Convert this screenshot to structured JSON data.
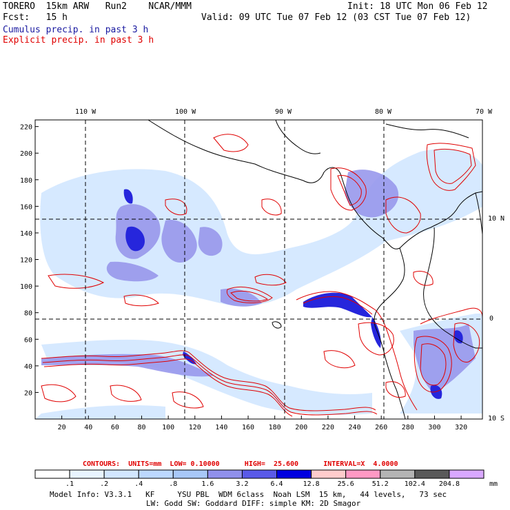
{
  "header": {
    "model": "TORERO  15km ARW   Run2    NCAR/MMM",
    "init": "Init: 18 UTC Mon 06 Feb 12",
    "fcst": "Fcst:   15 h",
    "valid": "Valid: 09 UTC Tue 07 Feb 12 (03 CST Tue 07 Feb 12)",
    "field1": "Cumulus precip. in past 3 h",
    "field2": "Explicit precip. in past 3 h"
  },
  "map": {
    "lon_labels": [
      "110 W",
      "100 W",
      "90 W",
      "80 W",
      "70 W"
    ],
    "lat_labels": [
      "10 N",
      "0",
      "10 S"
    ],
    "x_ticks": [
      "20",
      "40",
      "60",
      "80",
      "100",
      "120",
      "140",
      "160",
      "180",
      "200",
      "220",
      "240",
      "260",
      "280",
      "300",
      "320"
    ],
    "y_ticks": [
      "20",
      "40",
      "60",
      "80",
      "100",
      "120",
      "140",
      "160",
      "180",
      "200",
      "220"
    ],
    "colors": {
      "grid": "#000000",
      "coast": "#000000",
      "contour": "#e00000",
      "precip_light": "#d0e8ff",
      "precip_mid": "#8c8ce8",
      "precip_dark": "#2020e0"
    }
  },
  "contours": {
    "label": "CONTOURS:  UNITS=mm  LOW= 0.10000      HIGH=  25.600      INTERVAL=X  4.0000"
  },
  "colorbar": {
    "labels": [
      ".1",
      ".2",
      ".4",
      ".8",
      "1.6",
      "3.2",
      "6.4",
      "12.8",
      "25.6",
      "51.2",
      "102.4",
      "204.8"
    ],
    "colors": [
      "#ffffff",
      "#e8f4ff",
      "#d2e6ff",
      "#bcd8ff",
      "#a8c8f8",
      "#9090ec",
      "#5a5ae8",
      "#0000e0",
      "#ffcccc",
      "#ff99c4",
      "#b4b4b4",
      "#5a5a5a",
      "#d9a8ff"
    ],
    "unit": "mm"
  },
  "footer": {
    "line1": "Model Info: V3.3.1   KF     YSU PBL  WDM 6class  Noah LSM  15 km,   44 levels,   73 sec",
    "line2": "LW: Godd SW: Goddard DIFF: simple KM: 2D Smagor"
  }
}
